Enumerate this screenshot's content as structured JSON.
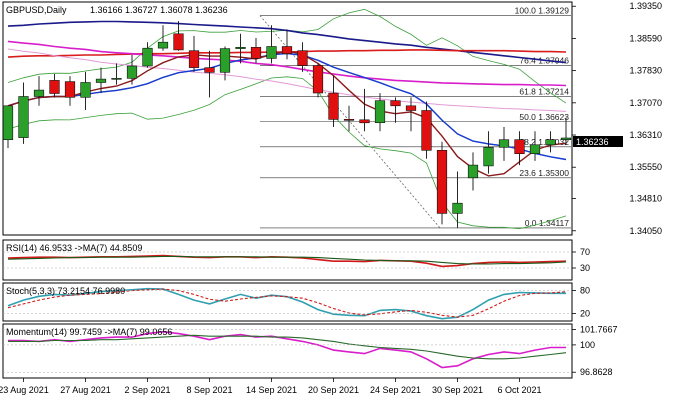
{
  "header": {
    "symbol": "GBPUSD,Daily",
    "ohlc": "1.36166 1.36727 1.36078 1.36236"
  },
  "price_axis": {
    "ticks": [
      "1.39350",
      "1.38590",
      "1.37830",
      "1.37070",
      "1.36310",
      "1.35550",
      "1.34810",
      "1.34050"
    ],
    "current_price": "1.36236"
  },
  "fibo": [
    {
      "label": "100.0 1.39129",
      "value": 1.39129
    },
    {
      "label": "76.4 1.37946",
      "value": 1.37946
    },
    {
      "label": "61.8 1.37214",
      "value": 1.37214
    },
    {
      "label": "50.0 1.36623",
      "value": 1.36623
    },
    {
      "label": "38.2 1.36032",
      "value": 1.36032
    },
    {
      "label": "23.6 1.35300",
      "value": 1.353
    },
    {
      "label": "0.0 1.34117",
      "value": 1.34117
    }
  ],
  "x_axis": {
    "labels": [
      "23 Aug 2021",
      "27 Aug 2021",
      "2 Sep 2021",
      "8 Sep 2021",
      "14 Sep 2021",
      "20 Sep 2021",
      "24 Sep 2021",
      "30 Sep 2021",
      "6 Oct 2021"
    ]
  },
  "rsi": {
    "label": "RSI(14) 46.9533 ->MA(7) 44.8509",
    "ticks": [
      "70",
      "30"
    ]
  },
  "stoch": {
    "label": "Stoch(5,3,3) 73.2154 76.9980",
    "ticks": [
      "80",
      "20"
    ]
  },
  "momentum": {
    "label": "Momentum(14) 99.7459 ->MA(7) 99.0656",
    "ticks": [
      "101.7667",
      "100",
      "96.8628"
    ]
  },
  "colors": {
    "bull": "#2aa02a",
    "bear": "#e01010",
    "dma200": "#1a1a8a",
    "dma100": "#d91c1c",
    "dma55": "#d81ecb",
    "bb": "#3aa03a",
    "ma_blue": "#1a3ad6",
    "ma_brown": "#8b1a1a",
    "osc_main": "#30a0b0",
    "osc_signal": "#d01a1a"
  },
  "chart_data": [
    {
      "type": "candlestick",
      "title": "GBPUSD,Daily",
      "ylim": [
        1.3395,
        1.3945
      ],
      "x": [
        "2021-08-20",
        "2021-08-23",
        "2021-08-24",
        "2021-08-25",
        "2021-08-26",
        "2021-08-27",
        "2021-08-30",
        "2021-08-31",
        "2021-09-01",
        "2021-09-02",
        "2021-09-03",
        "2021-09-06",
        "2021-09-07",
        "2021-09-08",
        "2021-09-09",
        "2021-09-10",
        "2021-09-13",
        "2021-09-14",
        "2021-09-15",
        "2021-09-16",
        "2021-09-17",
        "2021-09-20",
        "2021-09-21",
        "2021-09-22",
        "2021-09-23",
        "2021-09-24",
        "2021-09-27",
        "2021-09-28",
        "2021-09-29",
        "2021-09-30",
        "2021-10-01",
        "2021-10-04",
        "2021-10-05",
        "2021-10-06",
        "2021-10-07",
        "2021-10-08",
        "2021-10-11"
      ],
      "open": [
        1.362,
        1.3625,
        1.3722,
        1.376,
        1.3757,
        1.372,
        1.3755,
        1.3763,
        1.3765,
        1.3794,
        1.3836,
        1.387,
        1.383,
        1.379,
        1.3779,
        1.3835,
        1.3838,
        1.3812,
        1.384,
        1.383,
        1.3795,
        1.373,
        1.3668,
        1.3667,
        1.366,
        1.3712,
        1.37,
        1.3689,
        1.3595,
        1.3446,
        1.353,
        1.3558,
        1.3602,
        1.362,
        1.3587,
        1.3608,
        1.362
      ],
      "high": [
        1.37,
        1.3755,
        1.377,
        1.3775,
        1.377,
        1.378,
        1.379,
        1.38,
        1.382,
        1.385,
        1.389,
        1.39,
        1.3865,
        1.383,
        1.384,
        1.387,
        1.386,
        1.389,
        1.388,
        1.385,
        1.38,
        1.377,
        1.37,
        1.374,
        1.373,
        1.372,
        1.372,
        1.371,
        1.3615,
        1.3545,
        1.359,
        1.364,
        1.365,
        1.364,
        1.364,
        1.364,
        1.3672
      ],
      "low": [
        1.36,
        1.361,
        1.37,
        1.372,
        1.37,
        1.369,
        1.373,
        1.375,
        1.375,
        1.379,
        1.383,
        1.383,
        1.378,
        1.372,
        1.376,
        1.38,
        1.38,
        1.38,
        1.381,
        1.378,
        1.372,
        1.365,
        1.364,
        1.364,
        1.364,
        1.366,
        1.364,
        1.3575,
        1.342,
        1.3412,
        1.35,
        1.354,
        1.357,
        1.356,
        1.357,
        1.359,
        1.3608
      ],
      "close": [
        1.37,
        1.3722,
        1.3737,
        1.3729,
        1.372,
        1.3755,
        1.3763,
        1.3765,
        1.3794,
        1.3836,
        1.385,
        1.3832,
        1.379,
        1.3779,
        1.3835,
        1.3838,
        1.3812,
        1.384,
        1.3823,
        1.3795,
        1.373,
        1.3668,
        1.3667,
        1.366,
        1.3712,
        1.37,
        1.3689,
        1.3595,
        1.3446,
        1.347,
        1.356,
        1.3602,
        1.362,
        1.3587,
        1.3608,
        1.362,
        1.3624
      ],
      "series": [
        {
          "name": "DMA200",
          "values": [
            1.3888,
            1.389,
            1.3893,
            1.3895,
            1.3897,
            1.3898,
            1.3899,
            1.3899,
            1.3898,
            1.3897,
            1.3896,
            1.3894,
            1.3892,
            1.389,
            1.3888,
            1.3886,
            1.3884,
            1.3882,
            1.3878,
            1.3872,
            1.3868,
            1.3863,
            1.3858,
            1.3854,
            1.385,
            1.3846,
            1.3843,
            1.3838,
            1.3834,
            1.383,
            1.3826,
            1.3822,
            1.3818,
            1.3814,
            1.381,
            1.3806,
            1.3802
          ]
        },
        {
          "name": "DMA100",
          "values": [
            1.3815,
            1.3817,
            1.3818,
            1.3818,
            1.3819,
            1.382,
            1.382,
            1.3821,
            1.3822,
            1.3823,
            1.3823,
            1.3824,
            1.3825,
            1.3825,
            1.3825,
            1.3826,
            1.3826,
            1.3827,
            1.3827,
            1.3828,
            1.3829,
            1.3829,
            1.383,
            1.383,
            1.3831,
            1.3831,
            1.3832,
            1.3832,
            1.3831,
            1.383,
            1.383,
            1.383,
            1.383,
            1.3829,
            1.3828,
            1.3828,
            1.3827
          ]
        },
        {
          "name": "DMA55",
          "values": [
            1.3852,
            1.3848,
            1.3845,
            1.384,
            1.3836,
            1.3833,
            1.3828,
            1.3825,
            1.3823,
            1.382,
            1.3818,
            1.3815,
            1.3812,
            1.381,
            1.3808,
            1.3805,
            1.38,
            1.3797,
            1.3792,
            1.3786,
            1.378,
            1.3775,
            1.377,
            1.3766,
            1.3763,
            1.376,
            1.3758,
            1.3756,
            1.3754,
            1.3753,
            1.3752,
            1.3751,
            1.375,
            1.375,
            1.3749,
            1.3749,
            1.3748
          ]
        }
      ]
    },
    {
      "type": "line",
      "title": "RSI(14) 46.9533 ->MA(7) 44.8509",
      "ylim": [
        0,
        100
      ],
      "series": [
        {
          "name": "RSI(14)",
          "values": [
            55,
            56,
            57,
            57,
            56,
            57,
            58,
            58,
            59,
            60,
            61,
            59,
            57,
            56,
            58,
            58,
            56,
            58,
            57,
            55,
            51,
            47,
            47,
            46,
            49,
            48,
            47,
            42,
            34,
            36,
            41,
            44,
            45,
            44,
            45,
            46,
            47
          ]
        },
        {
          "name": "MA(7)",
          "values": [
            52,
            53,
            54,
            55,
            56,
            56,
            57,
            57,
            57,
            58,
            59,
            59,
            58,
            58,
            58,
            58,
            58,
            57,
            57,
            57,
            56,
            54,
            52,
            50,
            49,
            48,
            48,
            47,
            44,
            41,
            40,
            40,
            41,
            41,
            42,
            43,
            45
          ]
        }
      ]
    },
    {
      "type": "line",
      "title": "Stoch(5,3,3) 73.2154 76.9980",
      "ylim": [
        0,
        100
      ],
      "series": [
        {
          "name": "%K",
          "values": [
            40,
            55,
            65,
            70,
            68,
            72,
            78,
            80,
            82,
            85,
            84,
            70,
            55,
            45,
            58,
            70,
            60,
            68,
            64,
            50,
            30,
            18,
            15,
            14,
            28,
            30,
            26,
            14,
            6,
            10,
            30,
            55,
            70,
            75,
            74,
            73,
            73
          ]
        },
        {
          "name": "%D",
          "values": [
            35,
            45,
            55,
            63,
            68,
            70,
            72,
            76,
            80,
            82,
            84,
            80,
            70,
            57,
            52,
            58,
            62,
            66,
            64,
            60,
            48,
            33,
            21,
            16,
            19,
            24,
            28,
            23,
            15,
            10,
            15,
            32,
            52,
            67,
            73,
            74,
            77
          ]
        }
      ]
    },
    {
      "type": "line",
      "title": "Momentum(14) 99.7459 ->MA(7) 99.0656",
      "ylim": [
        96.2,
        102.4
      ],
      "series": [
        {
          "name": "Momentum(14)",
          "values": [
            100.5,
            100.5,
            100.4,
            100.6,
            100.4,
            100.6,
            100.8,
            100.9,
            100.9,
            101.3,
            101.5,
            101.3,
            101.0,
            100.6,
            101.0,
            101.2,
            100.9,
            101.0,
            100.7,
            100.4,
            100.0,
            99.4,
            99.2,
            99.0,
            99.6,
            99.4,
            99.2,
            98.4,
            97.4,
            97.6,
            98.4,
            98.9,
            99.2,
            99.0,
            99.4,
            99.7,
            99.7
          ]
        },
        {
          "name": "MA(7)",
          "values": [
            100.4,
            100.4,
            100.4,
            100.5,
            100.5,
            100.5,
            100.6,
            100.6,
            100.7,
            100.8,
            100.9,
            101.0,
            101.1,
            101.0,
            101.0,
            101.0,
            101.0,
            100.9,
            100.9,
            100.8,
            100.6,
            100.4,
            100.1,
            99.9,
            99.7,
            99.6,
            99.5,
            99.3,
            99.0,
            98.7,
            98.5,
            98.4,
            98.4,
            98.5,
            98.7,
            98.9,
            99.1
          ]
        }
      ]
    }
  ]
}
